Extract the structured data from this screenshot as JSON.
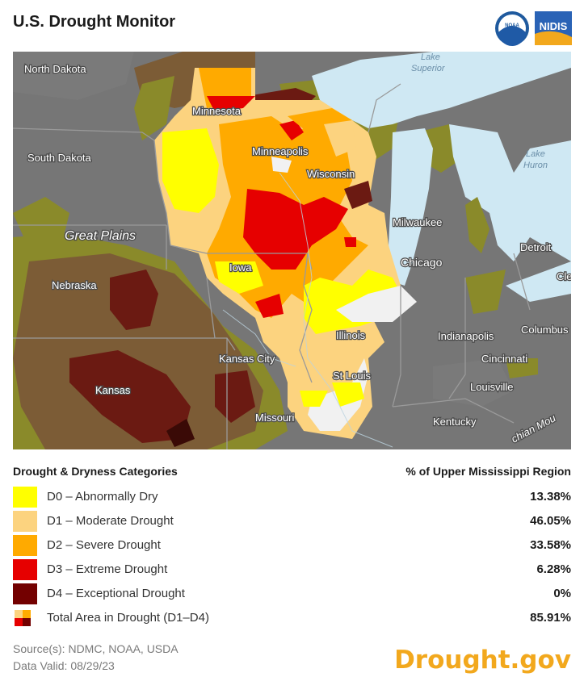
{
  "header": {
    "title": "U.S. Drought Monitor",
    "logo_noaa_text": "NOAA",
    "logo_nidis_text": "NIDIS"
  },
  "map": {
    "state_labels": {
      "north_dakota": "North Dakota",
      "south_dakota": "South Dakota",
      "minnesota": "Minnesota",
      "wisconsin": "Wisconsin",
      "nebraska": "Nebraska",
      "iowa": "Iowa",
      "illinois": "Illinois",
      "kansas": "Kansas",
      "missouri": "Missouri",
      "kentucky": "Kentucky"
    },
    "city_labels": {
      "minneapolis": "Minneapolis",
      "milwaukee": "Milwaukee",
      "chicago": "Chicago",
      "detroit": "Detroit",
      "cle": "Cle",
      "indianapolis": "Indianapolis",
      "columbus": "Columbus",
      "cincinnati": "Cincinnati",
      "kansas_city": "Kansas City",
      "st_louis": "St Louis",
      "louisville": "Louisville"
    },
    "region_labels": {
      "great_plains": "Great Plains",
      "appalachian": "chian Mou"
    },
    "water_labels": {
      "lake_superior_1": "Lake",
      "lake_superior_2": "Superior",
      "lake_huron_1": "Lake",
      "lake_huron_2": "Huron"
    }
  },
  "legend": {
    "heading": "Drought & Dryness Categories",
    "region_heading": "% of Upper Mississippi Region",
    "items": [
      {
        "label": "D0 – Abnormally Dry",
        "percent": "13.38%",
        "color": "#ffff00"
      },
      {
        "label": "D1 – Moderate Drought",
        "percent": "46.05%",
        "color": "#fcd37f"
      },
      {
        "label": "D2 – Severe Drought",
        "percent": "33.58%",
        "color": "#ffaa00"
      },
      {
        "label": "D3 – Extreme Drought",
        "percent": "6.28%",
        "color": "#e60000"
      },
      {
        "label": "D4 – Exceptional Drought",
        "percent": "0%",
        "color": "#730000"
      }
    ],
    "total": {
      "label": "Total Area in Drought (D1–D4)",
      "percent": "85.91%"
    }
  },
  "footer": {
    "sources": "Source(s): NDMC, NOAA, USDA",
    "valid": "Data Valid: 08/29/23",
    "brand": "Drought.gov"
  },
  "colors": {
    "d0": "#ffff00",
    "d1": "#fcd37f",
    "d2": "#ffaa00",
    "d3": "#e60000",
    "d4": "#730000",
    "outside_gray": "#767676",
    "outside_olive": "#8a8a2a",
    "outside_brown": "#7c5c36",
    "outside_darkred": "#6b1a12",
    "water": "#cfe8f3",
    "brand": "#f2a81d"
  }
}
